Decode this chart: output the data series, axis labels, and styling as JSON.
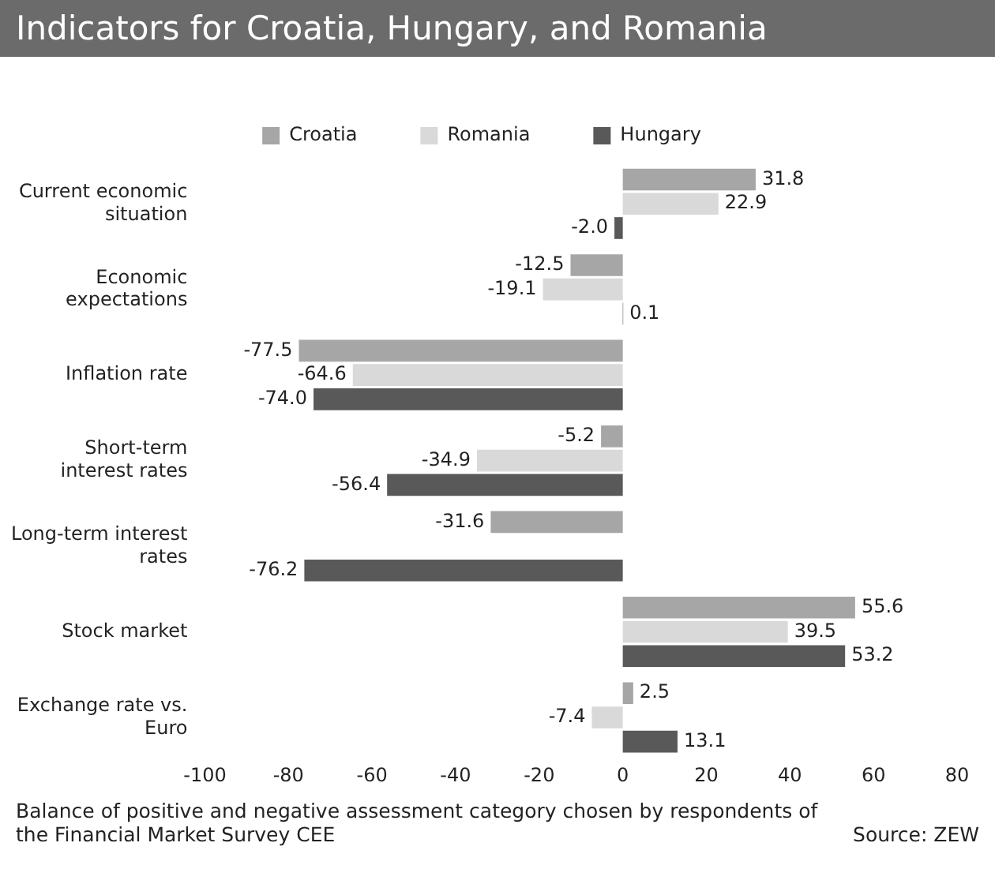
{
  "chart_data": {
    "type": "bar",
    "orientation": "horizontal",
    "title": "Indicators for Croatia, Hungary, and Romania",
    "categories": [
      "Current economic situation",
      "Economic expectations",
      "Inflation rate",
      "Short-term interest rates",
      "Long-term interest rates",
      "Stock market",
      "Exchange rate vs. Euro"
    ],
    "series": [
      {
        "name": "Croatia",
        "color": "#a6a6a6",
        "values": [
          31.8,
          -12.5,
          -77.5,
          -5.2,
          -31.6,
          55.6,
          2.5
        ],
        "value_labels": [
          "31.8",
          "-12.5",
          "-77.5",
          "-5.2",
          "-31.6",
          "55.6",
          "2.5"
        ]
      },
      {
        "name": "Romania",
        "color": "#d9d9d9",
        "values": [
          22.9,
          -19.1,
          -64.6,
          -34.9,
          null,
          39.5,
          -7.4
        ],
        "value_labels": [
          "22.9",
          "-19.1",
          "-64.6",
          "-34.9",
          null,
          "39.5",
          "-7.4"
        ]
      },
      {
        "name": "Hungary",
        "color": "#595959",
        "values": [
          -2.0,
          0.1,
          -74.0,
          -56.4,
          -76.2,
          53.2,
          13.1
        ],
        "value_labels": [
          "-2.0",
          "0.1",
          "-74.0",
          "-56.4",
          "-76.2",
          "53.2",
          "13.1"
        ]
      }
    ],
    "xlim": [
      -100,
      80
    ],
    "xticks": [
      -100,
      -80,
      -60,
      -40,
      -20,
      0,
      20,
      40,
      60,
      80
    ],
    "grid": false,
    "legend": "top",
    "annotations": [
      "Balance of positive and negative assessment category chosen by respondents of the Financial Market Survey CEE",
      "Source: ZEW"
    ]
  }
}
